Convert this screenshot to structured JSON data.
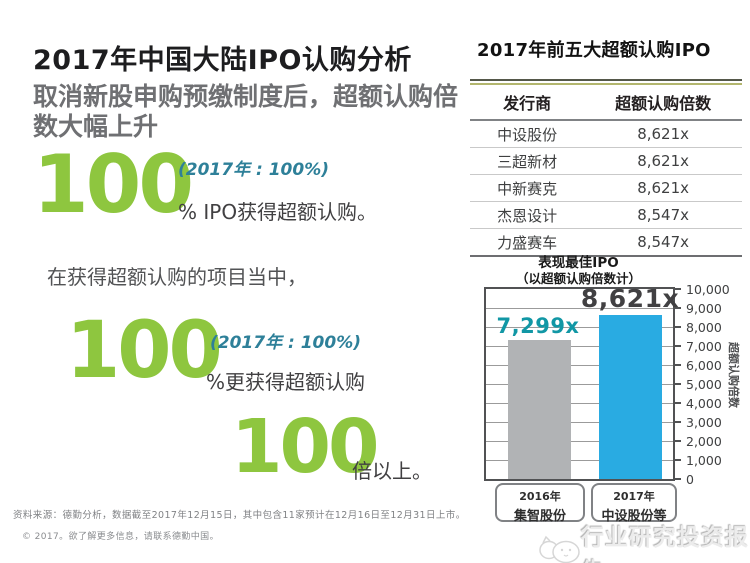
{
  "left": {
    "title": "2017年中国大陆IPO认购分析",
    "subtitle": "取消新股申购预缴制度后，超额认购倍数大幅上升",
    "stat1": {
      "value": "100",
      "note": "(2017年 : 100%)",
      "desc": "% IPO获得超额认购。"
    },
    "interim": "在获得超额认购的项目当中，",
    "stat2": {
      "value": "100",
      "note": "(2017年 : 100%)",
      "desc": "%更获得超额认购"
    },
    "stat3": {
      "value": "100",
      "desc": "倍以上。"
    },
    "source": "资料来源：德勤分析，数据截至2017年12月15日，其中包含11家预计在12月16日至12月31日上市。",
    "copyright": "© 2017。欲了解更多信息，请联系德勤中国。"
  },
  "table": {
    "title": "2017年前五大超额认购IPO",
    "headers": [
      "发行商",
      "超额认购倍数"
    ],
    "rows": [
      [
        "中设股份",
        "8,621x"
      ],
      [
        "三超新材",
        "8,621x"
      ],
      [
        "中新赛克",
        "8,621x"
      ],
      [
        "杰恩设计",
        "8,547x"
      ],
      [
        "力盛赛车",
        "8,547x"
      ]
    ]
  },
  "chart_data": {
    "type": "bar",
    "title": "表现最佳IPO",
    "subtitle": "（以超额认购倍数计）",
    "categories": [
      [
        "2016年",
        "集智股份"
      ],
      [
        "2017年",
        "中设股份等"
      ]
    ],
    "values": [
      7299,
      8621
    ],
    "value_labels": [
      "7,299x",
      "8,621x"
    ],
    "bar_colors": [
      "#b1b3b5",
      "#29abe2"
    ],
    "label_colors": [
      "#1197a5",
      "#414042"
    ],
    "ylabel": "超额认购倍数",
    "ylim": [
      0,
      10000
    ],
    "ytick_step": 1000,
    "yticks": [
      "10,000",
      "9,000",
      "8,000",
      "7,000",
      "6,000",
      "5,000",
      "4,000",
      "3,000",
      "2,000",
      "1,000",
      "0"
    ],
    "grid": true,
    "legend": "none"
  },
  "colors": {
    "accent_green": "#8ec63f",
    "teal_note": "#2e8099",
    "bar_blue": "#29abe2",
    "bar_gray": "#b1b3b5",
    "olive_rule": "#b3b66e"
  },
  "watermark": {
    "text": "行业研究投资报告",
    "logo": "doodle-cat-logo"
  }
}
